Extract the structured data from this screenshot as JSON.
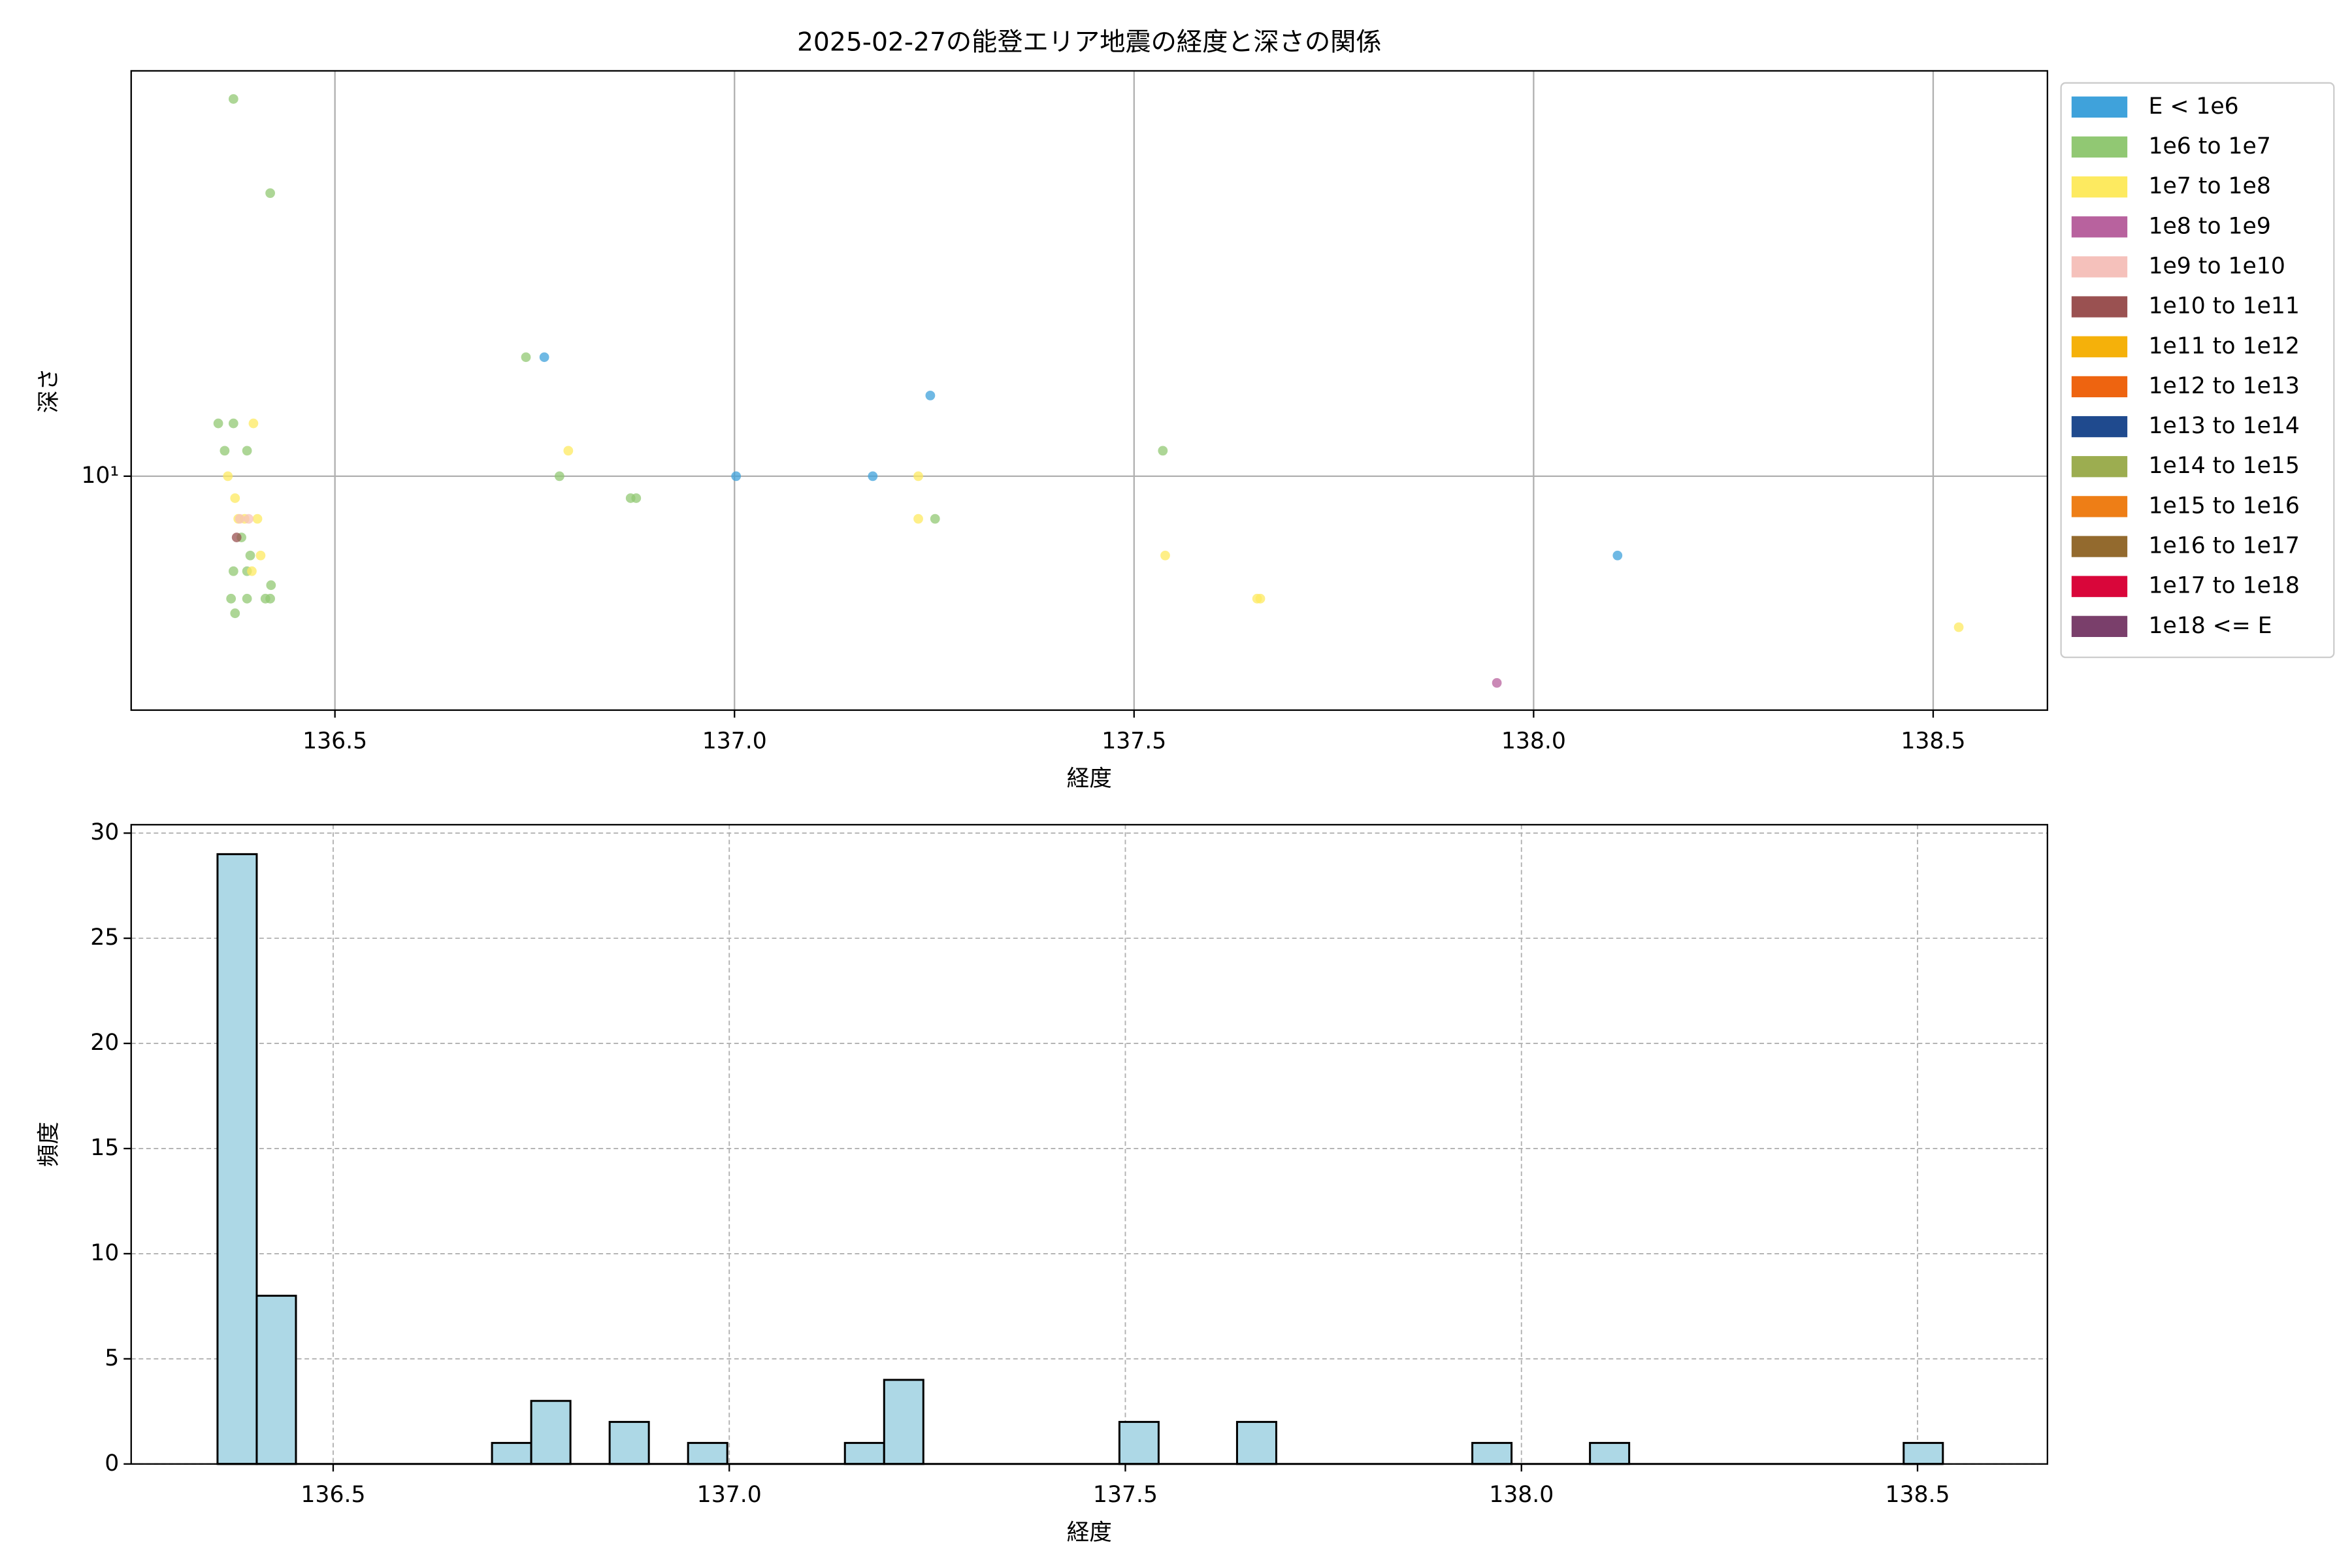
{
  "chart_data": [
    {
      "type": "scatter",
      "title": "2025-02-27の能登エリア地震の経度と深さの関係",
      "xlabel": "経度",
      "ylabel": "深さ",
      "xlim": [
        136.245,
        138.643
      ],
      "ylim": [
        2.56,
        106
      ],
      "log_y": true,
      "grid": true,
      "legend": "outside right",
      "xticks": [
        136.5,
        {
          "value": 137,
          "label": "137.0"
        },
        137.5,
        {
          "value": 138,
          "label": "138.0"
        },
        138.5
      ],
      "yticks": [
        {
          "value": 10,
          "label": "10¹"
        }
      ],
      "series": [
        {
          "name": "E < 1e6",
          "color": "#3fa2db",
          "x": [
            136.762,
            137.245,
            137.002,
            137.173,
            138.105
          ],
          "values": [
            20,
            16,
            10,
            10,
            6.3
          ]
        },
        {
          "name": "1e6 to 1e7",
          "color": "#91c873",
          "x": [
            136.373,
            136.419,
            136.739,
            136.354,
            136.373,
            136.362,
            136.39,
            136.781,
            136.87,
            136.877,
            137.251,
            137.536,
            136.394,
            136.373,
            136.39,
            136.42,
            136.37,
            136.39,
            136.413,
            136.419,
            136.375,
            136.383
          ],
          "values": [
            90,
            52,
            20,
            13.6,
            13.6,
            11.6,
            11.6,
            10,
            8.8,
            8.8,
            7.8,
            11.6,
            6.3,
            5.75,
            5.75,
            5.3,
            4.9,
            4.9,
            4.9,
            4.9,
            4.5,
            7
          ]
        },
        {
          "name": "1e7 to 1e8",
          "color": "#fdea60",
          "x": [
            136.398,
            136.792,
            136.366,
            136.375,
            137.23,
            137.23,
            136.379,
            136.403,
            136.407,
            136.396,
            137.539,
            137.654,
            137.658,
            138.532,
            136.387
          ],
          "values": [
            13.6,
            11.6,
            10,
            8.8,
            10,
            7.8,
            7.8,
            7.8,
            6.3,
            5.75,
            6.3,
            4.9,
            4.9,
            4.15,
            7.8
          ]
        },
        {
          "name": "1e8 to 1e9",
          "color": "#b8629e",
          "x": [
            137.954
          ],
          "values": [
            3
          ]
        },
        {
          "name": "1e9 to 1e10",
          "color": "#f5c1bb",
          "x": [
            136.392,
            136.381
          ],
          "values": [
            7.8,
            7.8
          ]
        },
        {
          "name": "1e10 to 1e11",
          "color": "#9a5151",
          "x": [
            136.377
          ],
          "values": [
            7
          ]
        },
        {
          "name": "1e11 to 1e12",
          "color": "#f5b10a",
          "x": [],
          "values": []
        },
        {
          "name": "1e12 to 1e13",
          "color": "#ee6410",
          "x": [],
          "values": []
        },
        {
          "name": "1e13 to 1e14",
          "color": "#1f4a8e",
          "x": [],
          "values": []
        },
        {
          "name": "1e14 to 1e15",
          "color": "#9cad50",
          "x": [],
          "values": []
        },
        {
          "name": "1e15 to 1e16",
          "color": "#ee7e16",
          "x": [],
          "values": []
        },
        {
          "name": "1e16 to 1e17",
          "color": "#936a2e",
          "x": [],
          "values": []
        },
        {
          "name": "1e17 to 1e18",
          "color": "#d9063a",
          "x": [],
          "values": []
        },
        {
          "name": "1e18 <= E",
          "color": "#7a3f6b",
          "x": [],
          "values": []
        }
      ]
    },
    {
      "type": "histogram",
      "xlabel": "経度",
      "ylabel": "頻度",
      "color": "#add8e6",
      "edgecolor": "#000000",
      "xlim": [
        136.245,
        138.664
      ],
      "ylim": [
        0,
        30.4
      ],
      "grid": true,
      "xticks": [
        136.5,
        {
          "value": 137,
          "label": "137.0"
        },
        137.5,
        {
          "value": 138,
          "label": "138.0"
        },
        138.5
      ],
      "yticks": [
        0,
        5,
        10,
        15,
        20,
        25,
        30
      ],
      "bins": [
        136.354,
        136.4035,
        136.453,
        136.5025,
        136.552,
        136.6015,
        136.651,
        136.7005,
        136.75,
        136.7995,
        136.849,
        136.8985,
        136.948,
        136.9975,
        137.047,
        137.0965,
        137.146,
        137.1955,
        137.245,
        137.2945,
        137.344,
        137.3935,
        137.443,
        137.4925,
        137.542,
        137.5915,
        137.641,
        137.6905,
        137.74,
        137.7895,
        137.839,
        137.8885,
        137.938,
        137.9875,
        138.037,
        138.0865,
        138.136,
        138.1855,
        138.235,
        138.2845,
        138.334,
        138.3835,
        138.433,
        138.4825,
        138.532
      ],
      "values": [
        29,
        8,
        0,
        0,
        0,
        0,
        0,
        1,
        3,
        0,
        2,
        0,
        1,
        0,
        0,
        0,
        1,
        4,
        0,
        0,
        0,
        0,
        0,
        2,
        0,
        0,
        2,
        0,
        0,
        0,
        0,
        0,
        1,
        0,
        0,
        1,
        0,
        0,
        0,
        0,
        0,
        0,
        0,
        1
      ]
    }
  ]
}
